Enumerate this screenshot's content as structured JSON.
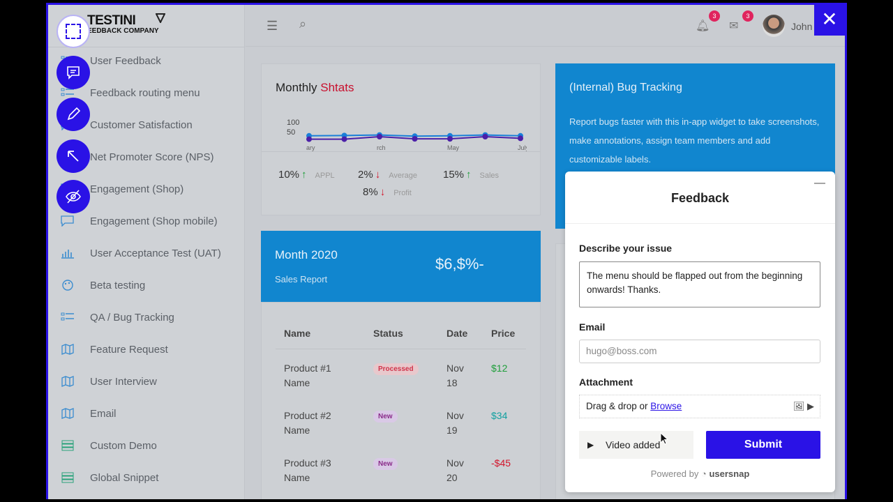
{
  "brand": {
    "name": "TESTINI",
    "tagline": "EEDBACK COMPANY"
  },
  "sidebar": {
    "items": [
      {
        "label": "User Feedback",
        "icon": "list-icon"
      },
      {
        "label": "Feedback routing menu",
        "icon": "list-icon"
      },
      {
        "label": "Customer Satisfaction",
        "icon": "chat-icon"
      },
      {
        "label": "Net Promoter Score (NPS)",
        "icon": "chart-icon"
      },
      {
        "label": "Engagement (Shop)",
        "icon": "chat-icon"
      },
      {
        "label": "Engagement (Shop mobile)",
        "icon": "chat-icon"
      },
      {
        "label": "User Acceptance Test (UAT)",
        "icon": "bar-chart-icon"
      },
      {
        "label": "Beta testing",
        "icon": "palette-icon"
      },
      {
        "label": "QA / Bug Tracking",
        "icon": "list-icon"
      },
      {
        "label": "Feature Request",
        "icon": "map-icon"
      },
      {
        "label": "User Interview",
        "icon": "map-icon"
      },
      {
        "label": "Email",
        "icon": "map-icon"
      },
      {
        "label": "Custom Demo",
        "icon": "server-icon"
      },
      {
        "label": "Global Snippet",
        "icon": "server-icon"
      }
    ]
  },
  "tools": [
    "select-area-icon",
    "comment-icon",
    "pencil-icon",
    "arrow-icon",
    "hide-icon"
  ],
  "topbar": {
    "notifications": "3",
    "messages": "3",
    "user": "John"
  },
  "stats": {
    "title": "Monthly",
    "title_accent": "Shtats",
    "chart_data": {
      "type": "line",
      "yticks": [
        "100",
        "50"
      ],
      "xticks": [
        "ary",
        "rch",
        "May",
        "July"
      ],
      "series": [
        {
          "color": "#1a7fd8",
          "values": [
            80,
            82,
            85,
            78,
            80,
            85,
            80
          ]
        },
        {
          "color": "#4b1fa8",
          "values": [
            60,
            60,
            75,
            62,
            62,
            75,
            65
          ]
        }
      ]
    },
    "items": [
      {
        "value": "10%",
        "dir": "up",
        "label": "APPL"
      },
      {
        "value": "2%",
        "dir": "down",
        "label": "Average"
      },
      {
        "value": "15%",
        "dir": "up",
        "label": "Sales"
      },
      {
        "value": "8%",
        "dir": "down",
        "label": "Profit"
      }
    ]
  },
  "sales": {
    "month": "Month 2020",
    "label": "Sales Report",
    "value": "$6,$%-"
  },
  "table": {
    "headers": [
      "Name",
      "Status",
      "Date",
      "Price"
    ],
    "rows": [
      {
        "name": "Product #1 Name",
        "status": "Processed",
        "date": "Nov 18",
        "price": "$12"
      },
      {
        "name": "Product #2 Name",
        "status": "New",
        "date": "Nov 19",
        "price": "$34"
      },
      {
        "name": "Product #3 Name",
        "status": "New",
        "date": "Nov 20",
        "price": "-$45"
      }
    ]
  },
  "bug": {
    "title": "(Internal) Bug Tracking",
    "text": "Report bugs faster with this in-app widget to take screenshots, make annotations, assign team members and add customizable labels."
  },
  "feedback": {
    "title": "Feedback",
    "describe_label": "Describe your issue",
    "describe_value": "The menu should be flapped out from the beginning onwards! Thanks.",
    "email_label": "Email",
    "email_value": "hugo@boss.com",
    "attachment_label": "Attachment",
    "drag_text": "Drag & drop or ",
    "browse": "Browse",
    "video": "Video added",
    "submit": "Submit",
    "powered": "Powered by",
    "brand": "usersnap"
  }
}
